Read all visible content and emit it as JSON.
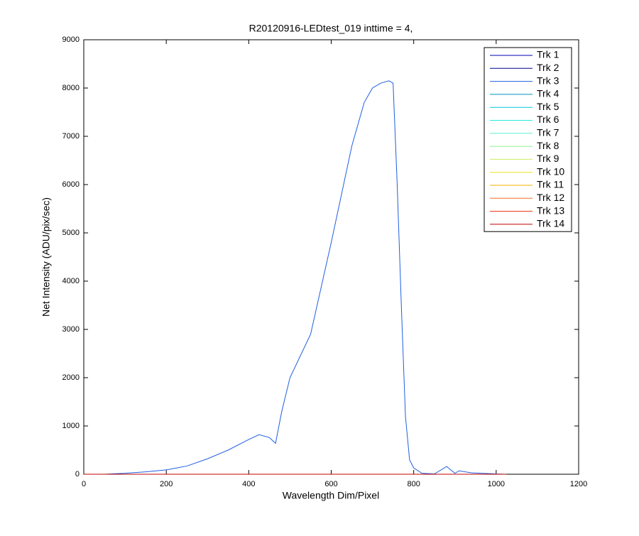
{
  "chart_data": {
    "type": "line",
    "title": "R20120916-LEDtest_019 inttime = 4,",
    "x_label": "Wavelength Dim/Pixel",
    "y_label": "Net Intensity (ADU/pix/sec)",
    "x": [
      0,
      50,
      100,
      150,
      200,
      250,
      300,
      350,
      400,
      425,
      450,
      465,
      480,
      500,
      550,
      600,
      650,
      680,
      700,
      720,
      740,
      750,
      760,
      770,
      780,
      790,
      800,
      820,
      850,
      880,
      900,
      910,
      940,
      1000,
      1024
    ],
    "series": [
      {
        "name": "Trk 1",
        "color": "#0000b7",
        "values": [
          0,
          0,
          0,
          0,
          0,
          0,
          0,
          0,
          0,
          0,
          0,
          0,
          0,
          0,
          0,
          0,
          0,
          0,
          0,
          0,
          0,
          0,
          0,
          0,
          0,
          0,
          0,
          0,
          0,
          0,
          0,
          0,
          0,
          0,
          0
        ]
      },
      {
        "name": "Trk 2",
        "color": "#00008f",
        "values": [
          0,
          0,
          0,
          0,
          0,
          0,
          0,
          0,
          0,
          0,
          0,
          0,
          0,
          0,
          0,
          0,
          0,
          0,
          0,
          0,
          0,
          0,
          0,
          0,
          0,
          0,
          0,
          0,
          0,
          0,
          0,
          0,
          0,
          0,
          0
        ]
      },
      {
        "name": "Trk 3",
        "color": "#1f5fe0",
        "values": [
          0,
          0,
          20,
          50,
          90,
          170,
          320,
          500,
          720,
          820,
          760,
          640,
          1300,
          2000,
          2900,
          4800,
          6800,
          7700,
          8000,
          8100,
          8150,
          8100,
          6000,
          3500,
          1200,
          300,
          130,
          20,
          5,
          160,
          20,
          70,
          30,
          5,
          0
        ]
      },
      {
        "name": "Trk 4",
        "color": "#0092c8",
        "values": [
          0,
          0,
          0,
          0,
          0,
          0,
          0,
          0,
          0,
          0,
          0,
          0,
          0,
          0,
          0,
          0,
          0,
          0,
          0,
          0,
          0,
          0,
          0,
          0,
          0,
          0,
          0,
          0,
          0,
          0,
          0,
          0,
          0,
          0,
          0
        ]
      },
      {
        "name": "Trk 5",
        "color": "#00c8d8",
        "values": [
          0,
          0,
          0,
          0,
          0,
          0,
          0,
          0,
          0,
          0,
          0,
          0,
          0,
          0,
          0,
          0,
          0,
          0,
          0,
          0,
          0,
          0,
          0,
          0,
          0,
          0,
          0,
          0,
          0,
          0,
          0,
          0,
          0,
          0,
          0
        ]
      },
      {
        "name": "Trk 6",
        "color": "#24e8e0",
        "values": [
          0,
          0,
          0,
          0,
          0,
          0,
          0,
          0,
          0,
          0,
          0,
          0,
          0,
          0,
          0,
          0,
          0,
          0,
          0,
          0,
          0,
          0,
          0,
          0,
          0,
          0,
          0,
          0,
          0,
          0,
          0,
          0,
          0,
          0,
          0
        ]
      },
      {
        "name": "Trk 7",
        "color": "#60f0d0",
        "values": [
          0,
          0,
          0,
          0,
          0,
          0,
          0,
          0,
          0,
          0,
          0,
          0,
          0,
          0,
          0,
          0,
          0,
          0,
          0,
          0,
          0,
          0,
          0,
          0,
          0,
          0,
          0,
          0,
          0,
          0,
          0,
          0,
          0,
          0,
          0
        ]
      },
      {
        "name": "Trk 8",
        "color": "#90f090",
        "values": [
          0,
          0,
          0,
          0,
          0,
          0,
          0,
          0,
          0,
          0,
          0,
          0,
          0,
          0,
          0,
          0,
          0,
          0,
          0,
          0,
          0,
          0,
          0,
          0,
          0,
          0,
          0,
          0,
          0,
          0,
          0,
          0,
          0,
          0,
          0
        ]
      },
      {
        "name": "Trk 9",
        "color": "#c8f060",
        "values": [
          0,
          0,
          0,
          0,
          0,
          0,
          0,
          0,
          0,
          0,
          0,
          0,
          0,
          0,
          0,
          0,
          0,
          0,
          0,
          0,
          0,
          0,
          0,
          0,
          0,
          0,
          0,
          0,
          0,
          0,
          0,
          0,
          0,
          0,
          0
        ]
      },
      {
        "name": "Trk 10",
        "color": "#f0e020",
        "values": [
          0,
          0,
          0,
          0,
          0,
          0,
          0,
          0,
          0,
          0,
          0,
          0,
          0,
          0,
          0,
          0,
          0,
          0,
          0,
          0,
          0,
          0,
          0,
          0,
          0,
          0,
          0,
          0,
          0,
          0,
          0,
          0,
          0,
          0,
          0
        ]
      },
      {
        "name": "Trk 11",
        "color": "#f0b000",
        "values": [
          0,
          0,
          0,
          0,
          0,
          0,
          0,
          0,
          0,
          0,
          0,
          0,
          0,
          0,
          0,
          0,
          0,
          0,
          0,
          0,
          0,
          0,
          0,
          0,
          0,
          0,
          0,
          0,
          0,
          0,
          0,
          0,
          0,
          0,
          0
        ]
      },
      {
        "name": "Trk 12",
        "color": "#f07020",
        "values": [
          0,
          0,
          0,
          0,
          0,
          0,
          0,
          0,
          0,
          0,
          0,
          0,
          0,
          0,
          0,
          0,
          0,
          0,
          0,
          0,
          0,
          0,
          0,
          0,
          0,
          0,
          0,
          0,
          0,
          0,
          0,
          0,
          0,
          0,
          0
        ]
      },
      {
        "name": "Trk 13",
        "color": "#e83010",
        "values": [
          0,
          0,
          0,
          0,
          0,
          0,
          0,
          0,
          0,
          0,
          0,
          0,
          0,
          0,
          0,
          0,
          0,
          0,
          0,
          0,
          0,
          0,
          0,
          0,
          0,
          0,
          0,
          0,
          0,
          0,
          0,
          0,
          0,
          0,
          0
        ]
      },
      {
        "name": "Trk 14",
        "color": "#c00000",
        "values": [
          0,
          0,
          0,
          0,
          0,
          0,
          0,
          0,
          0,
          0,
          0,
          0,
          0,
          0,
          0,
          0,
          0,
          0,
          0,
          0,
          0,
          0,
          0,
          0,
          0,
          0,
          0,
          0,
          0,
          0,
          0,
          0,
          0,
          0,
          0
        ]
      }
    ],
    "xlim": [
      0,
      1200
    ],
    "xticks": [
      0,
      200,
      400,
      600,
      800,
      1000,
      1200
    ],
    "ylim": [
      0,
      9000
    ],
    "yticks": [
      0,
      1000,
      2000,
      3000,
      4000,
      5000,
      6000,
      7000,
      8000,
      9000
    ],
    "grid": false,
    "legend": "northeast"
  }
}
